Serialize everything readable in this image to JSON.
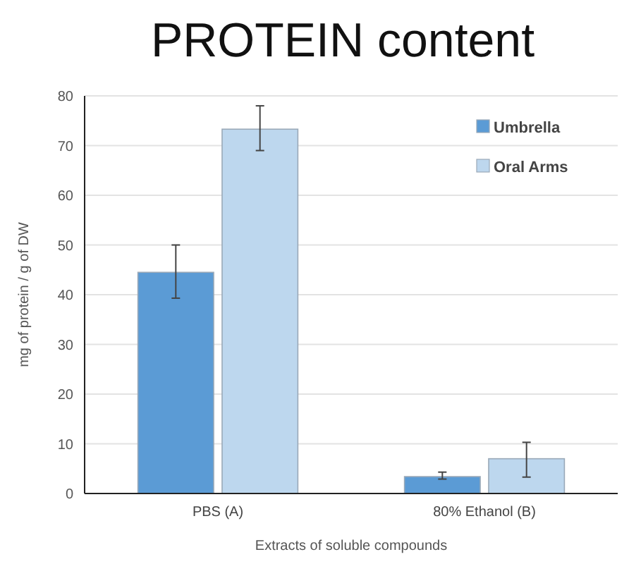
{
  "chart_data": {
    "type": "bar",
    "title": "PROTEIN content",
    "xlabel": "Extracts of soluble compounds",
    "ylabel": "mg of protein / g of DW",
    "categories": [
      "PBS (A)",
      "80% Ethanol (B)"
    ],
    "series": [
      {
        "name": "Umbrella",
        "color": "#5b9bd5",
        "values": [
          44.5,
          3.4
        ],
        "errors": [
          [
            39.3,
            50
          ],
          [
            2.9,
            4.3
          ]
        ]
      },
      {
        "name": "Oral Arms",
        "color": "#bdd7ee",
        "values": [
          73.3,
          7
        ],
        "errors": [
          [
            69,
            78
          ],
          [
            3.3,
            10.3
          ]
        ]
      }
    ],
    "ylim": [
      0,
      80
    ],
    "yticks": [
      0,
      10,
      20,
      30,
      40,
      50,
      60,
      70,
      80
    ],
    "grid": "y",
    "legend": "top right"
  }
}
